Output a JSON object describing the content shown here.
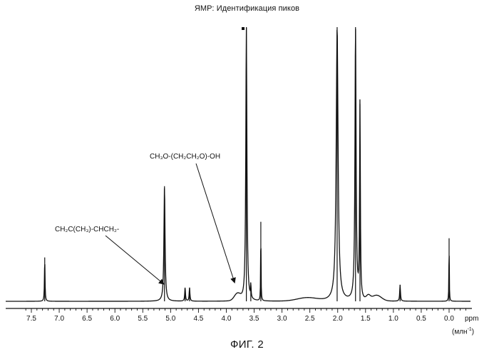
{
  "title": "ЯМР: Идентификация пиков",
  "caption": "ФИГ. 2",
  "x_unit_label": "(млн",
  "x_unit_sup": "-1",
  "x_unit_close": ")",
  "annotations": [
    {
      "text": "CH₃O-(CH₂CH₂O)-OH",
      "target_ppm": 3.85
    },
    {
      "text": "CH₂C(CH₃)-CHCH₂-",
      "target_ppm": 5.12
    }
  ],
  "chart_data": {
    "type": "line",
    "title": "ЯМР: Идентификация пиков",
    "xlabel": "ppm",
    "xlim": [
      7.6,
      -0.3
    ],
    "x_reversed": true,
    "ylim": [
      0,
      100
    ],
    "ticks": [
      7.5,
      7.0,
      6.5,
      6.0,
      5.5,
      5.0,
      4.5,
      4.0,
      3.5,
      3.0,
      2.5,
      2.0,
      1.5,
      1.0,
      0.5,
      0.0
    ],
    "tick_labels": [
      "7.5",
      "7.0",
      "6.5",
      "6.0",
      "5.5",
      "5.0",
      "4.5",
      "4.0",
      "3.5",
      "3.0",
      "2.5",
      "2.0",
      "1.5",
      "1.0",
      "0.5",
      "0.0"
    ],
    "peaks": [
      {
        "ppm": 7.26,
        "height": 16
      },
      {
        "ppm": 5.11,
        "height": 42
      },
      {
        "ppm": 4.74,
        "height": 5
      },
      {
        "ppm": 4.66,
        "height": 5
      },
      {
        "ppm": 3.64,
        "height": 100
      },
      {
        "ppm": 3.56,
        "height": 5
      },
      {
        "ppm": 3.38,
        "height": 29
      },
      {
        "ppm": 2.01,
        "height": 100
      },
      {
        "ppm": 1.68,
        "height": 100
      },
      {
        "ppm": 1.6,
        "height": 72
      },
      {
        "ppm": 0.88,
        "height": 6
      },
      {
        "ppm": 0.0,
        "height": 23
      }
    ],
    "grid": false
  }
}
